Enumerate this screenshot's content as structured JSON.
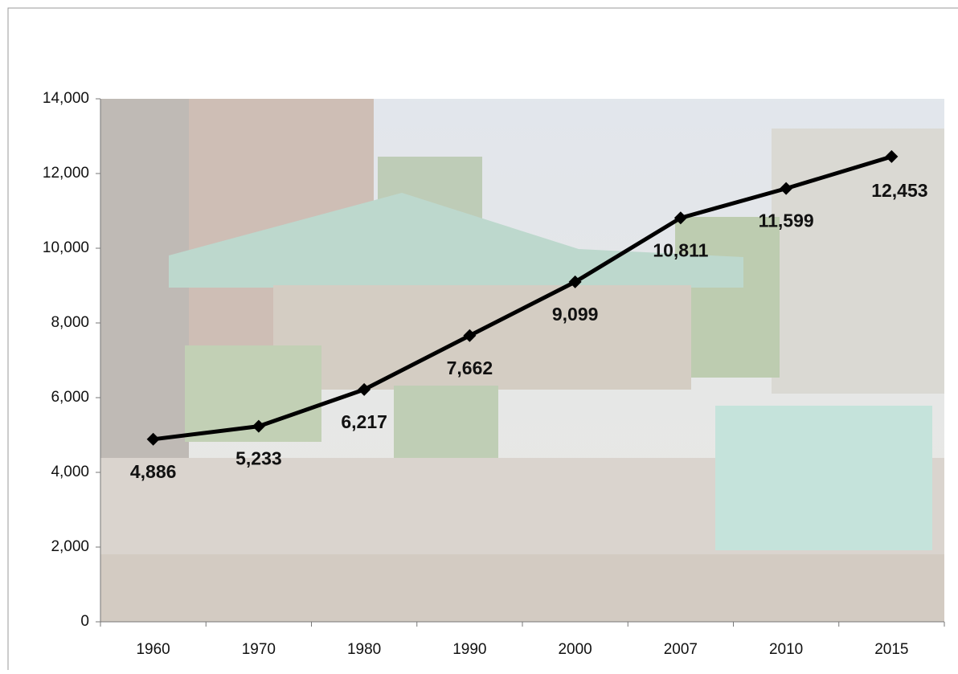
{
  "chart_data": {
    "type": "line",
    "categories": [
      "1960",
      "1970",
      "1980",
      "1990",
      "2000",
      "2007",
      "2010",
      "2015"
    ],
    "series": [
      {
        "color": "#000000",
        "values": [
          4886,
          5233,
          6217,
          7662,
          9099,
          10811,
          11599,
          12453
        ],
        "value_labels": [
          "4,886",
          "5,233",
          "6,217",
          "7,662",
          "9,099",
          "10,811",
          "11,599",
          "12,453"
        ]
      }
    ],
    "ylim": [
      0,
      14000
    ],
    "yticks": [
      0,
      {
        "value": 2000,
        "label": "2,000"
      },
      {
        "value": 4000,
        "label": "4,000"
      },
      {
        "value": 6000,
        "label": "6,000"
      },
      {
        "value": 8000,
        "label": "8,000"
      },
      {
        "value": 10000,
        "label": "10,000"
      },
      {
        "value": 12000,
        "label": "12,000"
      },
      {
        "value": 14000,
        "label": "14,000"
      }
    ]
  }
}
